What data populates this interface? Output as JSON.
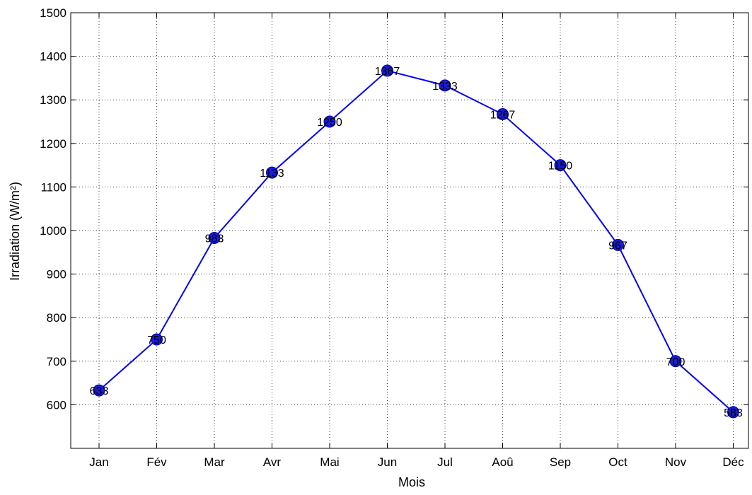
{
  "chart_data": {
    "type": "line",
    "title": "",
    "xlabel": "Mois",
    "ylabel": "Irradiation (W/m²)",
    "categories": [
      "Jan",
      "Fév",
      "Mar",
      "Avr",
      "Mai",
      "Jun",
      "Jul",
      "Aoû",
      "Sep",
      "Oct",
      "Nov",
      "Déc"
    ],
    "series": [
      {
        "values": [
          633,
          750,
          983,
          1133,
          1250,
          1367,
          1333,
          1267,
          1150,
          967,
          700,
          583
        ],
        "point_labels": [
          "633",
          "750",
          "983",
          "1133",
          "1250",
          "1367",
          "1333",
          "1267",
          "1150",
          "967",
          "700",
          "583"
        ],
        "color": "#0000ff",
        "marker_color": "#1a1adb"
      }
    ],
    "ylim": [
      500,
      1500
    ],
    "yticks": [
      600,
      700,
      800,
      900,
      1000,
      1100,
      1200,
      1300,
      1400,
      1500
    ],
    "grid": true,
    "grid_style": "dotted",
    "legend": false
  }
}
